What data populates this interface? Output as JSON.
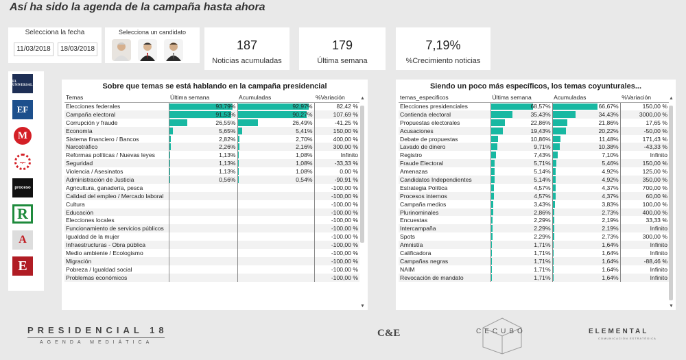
{
  "page": {
    "title": "Así ha sido la agenda de la campaña hasta ahora"
  },
  "date_filter": {
    "label": "Selecciona la fecha",
    "start": "11/03/2018",
    "end": "18/03/2018"
  },
  "candidate_filter": {
    "label": "Selecciona un candidato"
  },
  "kpis": [
    {
      "value": "187",
      "caption": "Noticias acumuladas"
    },
    {
      "value": "179",
      "caption": "Última semana"
    },
    {
      "value": "7,19%",
      "caption": "%Crecimiento noticias"
    }
  ],
  "logos": [
    "EL UNIVERSAL",
    "EF",
    "M",
    "aqua",
    "proceso",
    "R",
    "A",
    "E"
  ],
  "left_table": {
    "title": "Sobre que temas se está hablando en la campaña presidencial",
    "headers": [
      "Temas",
      "Última semana",
      "Acumuladas",
      "%Variación"
    ],
    "rows": [
      {
        "tema": "Elecciones federales",
        "semana": "93,79%",
        "semana_pct": 93.79,
        "acum": "92,97%",
        "acum_pct": 92.97,
        "var": "82,42 %"
      },
      {
        "tema": "Campaña electoral",
        "semana": "91,53%",
        "semana_pct": 91.53,
        "acum": "90,27%",
        "acum_pct": 90.27,
        "var": "107,69 %"
      },
      {
        "tema": "Corrupción y fraude",
        "semana": "26,55%",
        "semana_pct": 26.55,
        "acum": "26,49%",
        "acum_pct": 26.49,
        "var": "-41,25 %"
      },
      {
        "tema": "Economía",
        "semana": "5,65%",
        "semana_pct": 5.65,
        "acum": "5,41%",
        "acum_pct": 5.41,
        "var": "150,00 %"
      },
      {
        "tema": "Sistema financiero / Bancos",
        "semana": "2,82%",
        "semana_pct": 2.82,
        "acum": "2,70%",
        "acum_pct": 2.7,
        "var": "400,00 %"
      },
      {
        "tema": "Narcotráfico",
        "semana": "2,26%",
        "semana_pct": 2.26,
        "acum": "2,16%",
        "acum_pct": 2.16,
        "var": "300,00 %"
      },
      {
        "tema": "Reformas políticas / Nuevas leyes",
        "semana": "1,13%",
        "semana_pct": 1.13,
        "acum": "1,08%",
        "acum_pct": 1.08,
        "var": "Infinito"
      },
      {
        "tema": "Seguridad",
        "semana": "1,13%",
        "semana_pct": 1.13,
        "acum": "1,08%",
        "acum_pct": 1.08,
        "var": "-33,33 %"
      },
      {
        "tema": "Violencia / Asesinatos",
        "semana": "1,13%",
        "semana_pct": 1.13,
        "acum": "1,08%",
        "acum_pct": 1.08,
        "var": "0,00 %"
      },
      {
        "tema": "Administración de Justicia",
        "semana": "0,56%",
        "semana_pct": 0.56,
        "acum": "0,54%",
        "acum_pct": 0.54,
        "var": "-90,91 %"
      },
      {
        "tema": "Agricultura, ganadería, pesca",
        "semana": "",
        "semana_pct": 0,
        "acum": "",
        "acum_pct": 0,
        "var": "-100,00 %"
      },
      {
        "tema": "Calidad del empleo / Mercado laboral",
        "semana": "",
        "semana_pct": 0,
        "acum": "",
        "acum_pct": 0,
        "var": "-100,00 %"
      },
      {
        "tema": "Cultura",
        "semana": "",
        "semana_pct": 0,
        "acum": "",
        "acum_pct": 0,
        "var": "-100,00 %"
      },
      {
        "tema": "Educación",
        "semana": "",
        "semana_pct": 0,
        "acum": "",
        "acum_pct": 0,
        "var": "-100,00 %"
      },
      {
        "tema": "Elecciones locales",
        "semana": "",
        "semana_pct": 0,
        "acum": "",
        "acum_pct": 0,
        "var": "-100,00 %"
      },
      {
        "tema": "Funcionamiento de servicios públicos",
        "semana": "",
        "semana_pct": 0,
        "acum": "",
        "acum_pct": 0,
        "var": "-100,00 %"
      },
      {
        "tema": "Igualdad de la mujer",
        "semana": "",
        "semana_pct": 0,
        "acum": "",
        "acum_pct": 0,
        "var": "-100,00 %"
      },
      {
        "tema": "Infraestructuras - Obra pública",
        "semana": "",
        "semana_pct": 0,
        "acum": "",
        "acum_pct": 0,
        "var": "-100,00 %"
      },
      {
        "tema": "Medio ambiente / Ecologismo",
        "semana": "",
        "semana_pct": 0,
        "acum": "",
        "acum_pct": 0,
        "var": "-100,00 %"
      },
      {
        "tema": "Migración",
        "semana": "",
        "semana_pct": 0,
        "acum": "",
        "acum_pct": 0,
        "var": "-100,00 %"
      },
      {
        "tema": "Pobreza / Igualdad social",
        "semana": "",
        "semana_pct": 0,
        "acum": "",
        "acum_pct": 0,
        "var": "-100,00 %"
      },
      {
        "tema": "Problemas económicos",
        "semana": "",
        "semana_pct": 0,
        "acum": "",
        "acum_pct": 0,
        "var": "-100,00 %"
      }
    ]
  },
  "right_table": {
    "title": "Siendo un poco más específicos, los temas coyunturales...",
    "headers": [
      "temas_especificos",
      "Última semana",
      "Acumuladas",
      "%Variación"
    ],
    "rows": [
      {
        "tema": "Elecciones presidenciales",
        "semana": "68,57%",
        "semana_pct": 68.57,
        "acum": "66,67%",
        "acum_pct": 66.67,
        "var": "150,00 %"
      },
      {
        "tema": "Contienda electoral",
        "semana": "35,43%",
        "semana_pct": 35.43,
        "acum": "34,43%",
        "acum_pct": 34.43,
        "var": "3000,00 %"
      },
      {
        "tema": "Propuestas electorales",
        "semana": "22,86%",
        "semana_pct": 22.86,
        "acum": "21,86%",
        "acum_pct": 21.86,
        "var": "17,65 %"
      },
      {
        "tema": "Acusaciones",
        "semana": "19,43%",
        "semana_pct": 19.43,
        "acum": "20,22%",
        "acum_pct": 20.22,
        "var": "-50,00 %"
      },
      {
        "tema": "Debate de propuestas",
        "semana": "10,86%",
        "semana_pct": 10.86,
        "acum": "11,48%",
        "acum_pct": 11.48,
        "var": "171,43 %"
      },
      {
        "tema": "Lavado de dinero",
        "semana": "9,71%",
        "semana_pct": 9.71,
        "acum": "10,38%",
        "acum_pct": 10.38,
        "var": "-43,33 %"
      },
      {
        "tema": "Registro",
        "semana": "7,43%",
        "semana_pct": 7.43,
        "acum": "7,10%",
        "acum_pct": 7.1,
        "var": "Infinito"
      },
      {
        "tema": "Fraude Electoral",
        "semana": "5,71%",
        "semana_pct": 5.71,
        "acum": "5,46%",
        "acum_pct": 5.46,
        "var": "150,00 %"
      },
      {
        "tema": "Amenazas",
        "semana": "5,14%",
        "semana_pct": 5.14,
        "acum": "4,92%",
        "acum_pct": 4.92,
        "var": "125,00 %"
      },
      {
        "tema": "Candidatos Independientes",
        "semana": "5,14%",
        "semana_pct": 5.14,
        "acum": "4,92%",
        "acum_pct": 4.92,
        "var": "350,00 %"
      },
      {
        "tema": "Estrategia Política",
        "semana": "4,57%",
        "semana_pct": 4.57,
        "acum": "4,37%",
        "acum_pct": 4.37,
        "var": "700,00 %"
      },
      {
        "tema": "Procesos internos",
        "semana": "4,57%",
        "semana_pct": 4.57,
        "acum": "4,37%",
        "acum_pct": 4.37,
        "var": "60,00 %"
      },
      {
        "tema": "Campaña medios",
        "semana": "3,43%",
        "semana_pct": 3.43,
        "acum": "3,83%",
        "acum_pct": 3.83,
        "var": "100,00 %"
      },
      {
        "tema": "Plurinominales",
        "semana": "2,86%",
        "semana_pct": 2.86,
        "acum": "2,73%",
        "acum_pct": 2.73,
        "var": "400,00 %"
      },
      {
        "tema": "Encuestas",
        "semana": "2,29%",
        "semana_pct": 2.29,
        "acum": "2,19%",
        "acum_pct": 2.19,
        "var": "33,33 %"
      },
      {
        "tema": "Intercampaña",
        "semana": "2,29%",
        "semana_pct": 2.29,
        "acum": "2,19%",
        "acum_pct": 2.19,
        "var": "Infinito"
      },
      {
        "tema": "Spots",
        "semana": "2,29%",
        "semana_pct": 2.29,
        "acum": "2,73%",
        "acum_pct": 2.73,
        "var": "300,00 %"
      },
      {
        "tema": "Amnistía",
        "semana": "1,71%",
        "semana_pct": 1.71,
        "acum": "1,64%",
        "acum_pct": 1.64,
        "var": "Infinito"
      },
      {
        "tema": "Calificadora",
        "semana": "1,71%",
        "semana_pct": 1.71,
        "acum": "1,64%",
        "acum_pct": 1.64,
        "var": "Infinito"
      },
      {
        "tema": "Campañas negras",
        "semana": "1,71%",
        "semana_pct": 1.71,
        "acum": "1,64%",
        "acum_pct": 1.64,
        "var": "-88,46 %"
      },
      {
        "tema": "NAIM",
        "semana": "1,71%",
        "semana_pct": 1.71,
        "acum": "1,64%",
        "acum_pct": 1.64,
        "var": "Infinito"
      },
      {
        "tema": "Revocación de mandato",
        "semana": "1,71%",
        "semana_pct": 1.71,
        "acum": "1,64%",
        "acum_pct": 1.64,
        "var": "Infinito"
      }
    ]
  },
  "footer": {
    "brand": "PRESIDENCIAL 18",
    "brand_sub": "AGENDA MEDIÁTICA",
    "partner1": "C&E",
    "partner2": "CECUBO",
    "partner3": "ELEMENTAL",
    "partner3_sub": "COMUNICACIÓN ESTRATÉGICA"
  },
  "colors": {
    "bar": "#18b8a2",
    "background": "#e9e9e9"
  }
}
